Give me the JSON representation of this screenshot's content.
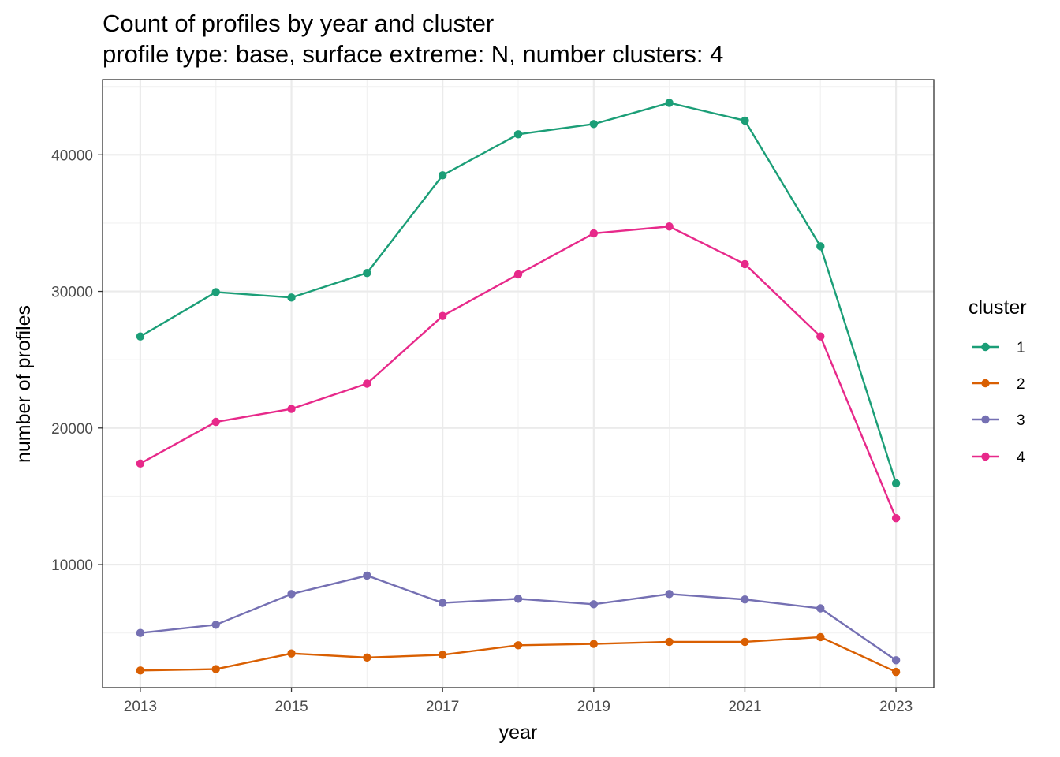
{
  "chart_data": {
    "type": "line",
    "title": "Count of profiles by year and cluster",
    "subtitle": "profile type: base, surface extreme: N, number clusters: 4",
    "xlabel": "year",
    "ylabel": "number of profiles",
    "x": [
      2013,
      2014,
      2015,
      2016,
      2017,
      2018,
      2019,
      2020,
      2021,
      2022,
      2023
    ],
    "xlim": [
      2012.5,
      2023.5
    ],
    "ylim": [
      1000,
      45500
    ],
    "x_ticks": [
      "2013",
      "2015",
      "2017",
      "2019",
      "2021",
      "2023"
    ],
    "y_ticks": [
      "10000",
      "20000",
      "30000",
      "40000"
    ],
    "grid": true,
    "legend": {
      "title": "cluster",
      "position": "right"
    },
    "series": [
      {
        "name": "1",
        "color": "#1b9e77",
        "values": [
          26700,
          29950,
          29550,
          31350,
          38500,
          41500,
          42250,
          43800,
          42500,
          33300,
          15950
        ]
      },
      {
        "name": "2",
        "color": "#d95f02",
        "values": [
          2250,
          2350,
          3500,
          3200,
          3400,
          4100,
          4200,
          4350,
          4350,
          4700,
          2150
        ]
      },
      {
        "name": "3",
        "color": "#7570b3",
        "values": [
          5000,
          5600,
          7850,
          9200,
          7200,
          7500,
          7100,
          7850,
          7450,
          6800,
          3000
        ]
      },
      {
        "name": "4",
        "color": "#e7298a",
        "values": [
          17400,
          20450,
          21400,
          23250,
          28200,
          31250,
          34250,
          34750,
          32000,
          26700,
          13400
        ]
      }
    ]
  }
}
